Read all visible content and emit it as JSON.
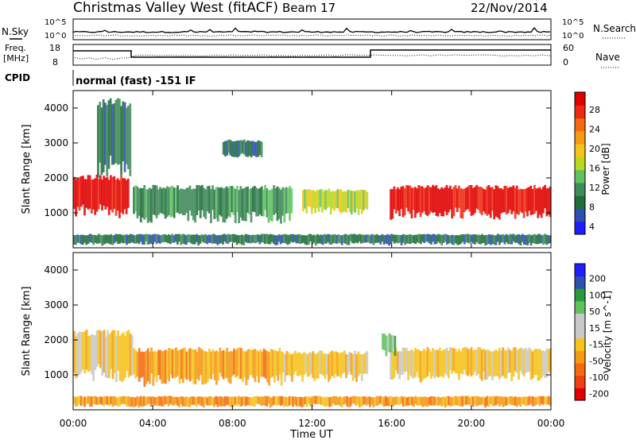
{
  "header": {
    "site": "Christmas Valley West (fitACF)",
    "beam": "Beam 17",
    "date": "22/Nov/2014"
  },
  "noise_panel": {
    "left_label": "N.Sky",
    "right_label": "N.Search",
    "left_ticks": [
      "10^5",
      "10^0"
    ],
    "right_ticks": [
      "10^5",
      "10^0"
    ]
  },
  "freq_panel": {
    "left_label_1": "Freq.",
    "left_label_2": "[MHz]",
    "right_label": "Nave",
    "left_ticks": [
      "18",
      "8"
    ],
    "right_ticks": [
      "60",
      "0"
    ]
  },
  "cpid": {
    "label": "CPID",
    "text": "normal (fast) -151 IF"
  },
  "colors": {
    "power_scale": [
      "#1e1eff",
      "#2d4fb0",
      "#1f6e3a",
      "#3f8a5a",
      "#5fc25f",
      "#b6d91e",
      "#f5c31a",
      "#f59a14",
      "#f56a10",
      "#ee2b10",
      "#e00000"
    ],
    "velocity_scale": [
      "#e00000",
      "#f04010",
      "#f56a10",
      "#f59a14",
      "#f5c31a",
      "#c8c8c8",
      "#c8c8c8",
      "#5fc25f",
      "#2a9a3a",
      "#2d4fb0",
      "#1e1eff"
    ]
  },
  "chart_data": [
    {
      "type": "heatmap",
      "panel": "power",
      "ylabel": "Slant Range [km]",
      "yticks": [
        "4000",
        "3000",
        "2000",
        "1000"
      ],
      "ylim": [
        0,
        4500
      ],
      "xlim": [
        "00:00",
        "24:00"
      ],
      "colorbar_label": "Power [dB]",
      "colorbar_ticks": [
        "28",
        "24",
        "20",
        "16",
        "12",
        "8",
        "4"
      ],
      "regions": [
        {
          "t0": 0.0,
          "t1": 2.8,
          "r0": 1000,
          "r1": 2100,
          "level": "28"
        },
        {
          "t0": 1.2,
          "t1": 2.9,
          "r0": 2200,
          "r1": 4300,
          "level": "8"
        },
        {
          "t0": 3.0,
          "t1": 11.0,
          "r0": 800,
          "r1": 1800,
          "level": "12"
        },
        {
          "t0": 7.5,
          "t1": 9.5,
          "r0": 2600,
          "r1": 3100,
          "level": "8"
        },
        {
          "t0": 11.5,
          "t1": 14.8,
          "r0": 1000,
          "r1": 1700,
          "level": "16"
        },
        {
          "t0": 15.9,
          "t1": 24.0,
          "r0": 900,
          "r1": 1800,
          "level": "28"
        },
        {
          "t0": 0.0,
          "t1": 24.0,
          "r0": 100,
          "r1": 400,
          "level": "8"
        }
      ]
    },
    {
      "type": "heatmap",
      "panel": "velocity",
      "ylabel": "Slant Range [km]",
      "yticks": [
        "4000",
        "3000",
        "2000",
        "1000"
      ],
      "ylim": [
        0,
        4500
      ],
      "xlim": [
        "00:00",
        "24:00"
      ],
      "colorbar_label": "Velocity [m s^-1]",
      "colorbar_ticks": [
        "200",
        "100",
        "50",
        "15",
        "-15",
        "-50",
        "-100",
        "-200"
      ],
      "regions": [
        {
          "t0": 0.0,
          "t1": 3.0,
          "r0": 900,
          "r1": 2300,
          "level": "-15"
        },
        {
          "t0": 3.0,
          "t1": 10.5,
          "r0": 800,
          "r1": 1800,
          "level": "-50"
        },
        {
          "t0": 10.5,
          "t1": 14.8,
          "r0": 900,
          "r1": 1700,
          "level": "-15"
        },
        {
          "t0": 15.9,
          "t1": 24.0,
          "r0": 900,
          "r1": 1800,
          "level": "-15"
        },
        {
          "t0": 15.5,
          "t1": 16.2,
          "r0": 1600,
          "r1": 2200,
          "level": "50"
        },
        {
          "t0": 0.0,
          "t1": 24.0,
          "r0": 100,
          "r1": 400,
          "level": "-50"
        }
      ]
    }
  ],
  "x_axis": {
    "label": "Time UT",
    "ticks": [
      "00:00",
      "04:00",
      "08:00",
      "12:00",
      "16:00",
      "20:00",
      "00:00"
    ]
  }
}
